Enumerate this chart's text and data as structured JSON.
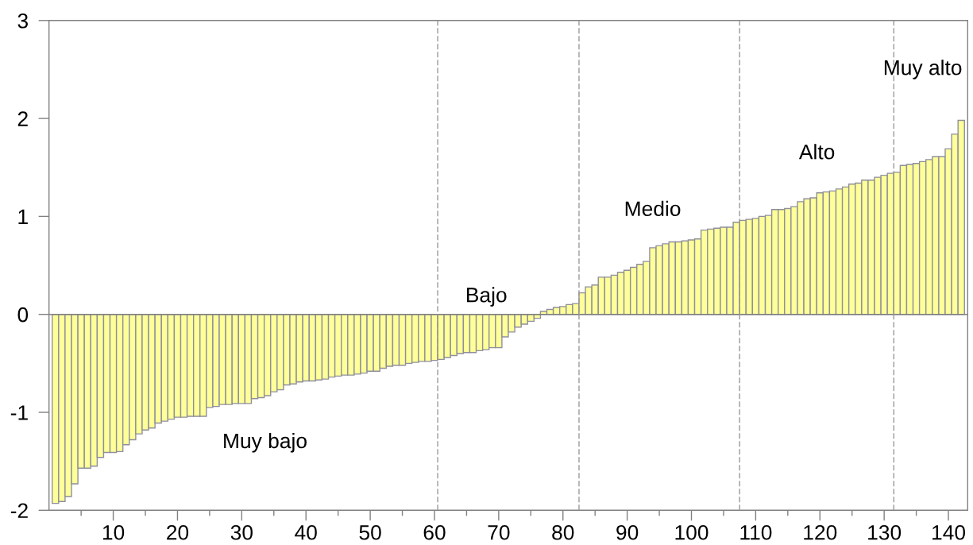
{
  "chart_data": {
    "type": "bar",
    "x": [
      1,
      2,
      3,
      4,
      5,
      6,
      7,
      8,
      9,
      10,
      11,
      12,
      13,
      14,
      15,
      16,
      17,
      18,
      19,
      20,
      21,
      22,
      23,
      24,
      25,
      26,
      27,
      28,
      29,
      30,
      31,
      32,
      33,
      34,
      35,
      36,
      37,
      38,
      39,
      40,
      41,
      42,
      43,
      44,
      45,
      46,
      47,
      48,
      49,
      50,
      51,
      52,
      53,
      54,
      55,
      56,
      57,
      58,
      59,
      60,
      61,
      62,
      63,
      64,
      65,
      66,
      67,
      68,
      69,
      70,
      71,
      72,
      73,
      74,
      75,
      76,
      77,
      78,
      79,
      80,
      81,
      82,
      83,
      84,
      85,
      86,
      87,
      88,
      89,
      90,
      91,
      92,
      93,
      94,
      95,
      96,
      97,
      98,
      99,
      100,
      101,
      102,
      103,
      104,
      105,
      106,
      107,
      108,
      109,
      110,
      111,
      112,
      113,
      114,
      115,
      116,
      117,
      118,
      119,
      120,
      121,
      122,
      123,
      124,
      125,
      126,
      127,
      128,
      129,
      130,
      131,
      132,
      133,
      134,
      135,
      136,
      137,
      138,
      139,
      140,
      141,
      142
    ],
    "values": [
      -1.93,
      -1.91,
      -1.86,
      -1.73,
      -1.57,
      -1.57,
      -1.55,
      -1.46,
      -1.41,
      -1.41,
      -1.4,
      -1.33,
      -1.28,
      -1.22,
      -1.18,
      -1.16,
      -1.11,
      -1.09,
      -1.07,
      -1.05,
      -1.05,
      -1.04,
      -1.04,
      -1.04,
      -0.95,
      -0.94,
      -0.92,
      -0.92,
      -0.91,
      -0.91,
      -0.91,
      -0.86,
      -0.85,
      -0.83,
      -0.79,
      -0.77,
      -0.72,
      -0.71,
      -0.69,
      -0.68,
      -0.68,
      -0.67,
      -0.66,
      -0.64,
      -0.63,
      -0.62,
      -0.62,
      -0.61,
      -0.6,
      -0.58,
      -0.58,
      -0.55,
      -0.53,
      -0.52,
      -0.52,
      -0.5,
      -0.49,
      -0.48,
      -0.48,
      -0.47,
      -0.46,
      -0.44,
      -0.42,
      -0.4,
      -0.39,
      -0.39,
      -0.37,
      -0.36,
      -0.34,
      -0.34,
      -0.23,
      -0.18,
      -0.13,
      -0.1,
      -0.07,
      -0.04,
      0.03,
      0.05,
      0.07,
      0.08,
      0.1,
      0.11,
      0.22,
      0.28,
      0.3,
      0.38,
      0.38,
      0.4,
      0.43,
      0.45,
      0.48,
      0.51,
      0.54,
      0.68,
      0.7,
      0.72,
      0.74,
      0.74,
      0.75,
      0.76,
      0.77,
      0.86,
      0.87,
      0.88,
      0.89,
      0.89,
      0.94,
      0.96,
      0.97,
      0.98,
      1.0,
      1.01,
      1.07,
      1.07,
      1.08,
      1.1,
      1.15,
      1.18,
      1.19,
      1.24,
      1.25,
      1.26,
      1.28,
      1.3,
      1.33,
      1.34,
      1.37,
      1.37,
      1.4,
      1.42,
      1.44,
      1.45,
      1.52,
      1.53,
      1.54,
      1.56,
      1.58,
      1.61,
      1.61,
      1.69,
      1.84,
      1.98
    ],
    "color": "#ffff99",
    "xlim": [
      0,
      143
    ],
    "xticks": [
      {
        "value": 5,
        "label": null
      },
      10,
      {
        "value": 15,
        "label": null
      },
      20,
      {
        "value": 25,
        "label": null
      },
      30,
      {
        "value": 35,
        "label": null
      },
      40,
      {
        "value": 45,
        "label": null
      },
      50,
      {
        "value": 55,
        "label": null
      },
      60,
      {
        "value": 65,
        "label": null
      },
      70,
      {
        "value": 75,
        "label": null
      },
      80,
      {
        "value": 85,
        "label": null
      },
      90,
      {
        "value": 95,
        "label": null
      },
      100,
      {
        "value": 105,
        "label": null
      },
      110,
      {
        "value": 115,
        "label": null
      },
      120,
      {
        "value": 125,
        "label": null
      },
      130,
      {
        "value": 135,
        "label": null
      },
      140
    ],
    "ylim": [
      -2,
      3
    ],
    "yticks": [
      -2,
      -1,
      0,
      1,
      2,
      3
    ],
    "grid": false,
    "ref_lines": [
      {
        "axis": "y",
        "value": 0,
        "color": "#808080",
        "line_style": "solid"
      },
      {
        "axis": "x",
        "value": 60.5,
        "color": "#9a9a9a",
        "line_style": "dashed"
      },
      {
        "axis": "x",
        "value": 82.5,
        "color": "#9a9a9a",
        "line_style": "dashed"
      },
      {
        "axis": "x",
        "value": 107.5,
        "color": "#9a9a9a",
        "line_style": "dashed"
      },
      {
        "axis": "x",
        "value": 131.5,
        "color": "#9a9a9a",
        "line_style": "dashed"
      }
    ],
    "annotations": [
      "Muy bajo",
      "Bajo",
      "Medio",
      "Alto",
      "Muy alto"
    ]
  }
}
